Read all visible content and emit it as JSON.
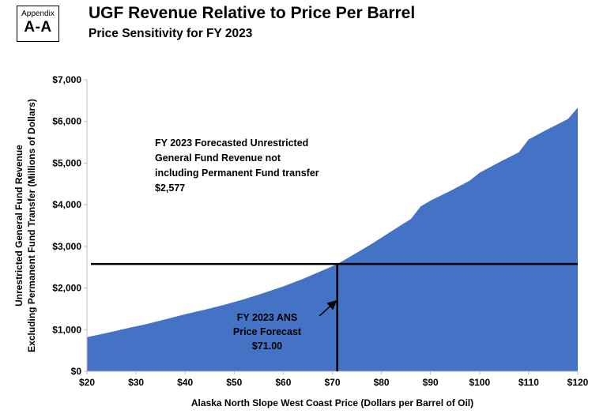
{
  "appendix": {
    "label": "Appendix",
    "id": "A-A"
  },
  "header": {
    "title": "UGF Revenue Relative to Price Per Barrel",
    "subtitle": "Price Sensitivity for FY 2023"
  },
  "colors": {
    "area": "#4472c4",
    "lines": "#000000"
  },
  "chart_data": {
    "type": "area",
    "title": "UGF Revenue Relative to Price Per Barrel",
    "subtitle": "Price Sensitivity for FY 2023",
    "xlabel": "Alaska North Slope West Coast Price (Dollars per Barrel of Oil)",
    "ylabel_lines": [
      "Unrestricted General Fund Revenue",
      "Excluding Permanent Fund Transfer (Millions of Dollars)"
    ],
    "xlim": [
      20,
      120
    ],
    "ylim": [
      0,
      7000
    ],
    "x_ticks": [
      20,
      30,
      40,
      50,
      60,
      70,
      80,
      90,
      100,
      110,
      120
    ],
    "x_tick_labels": [
      "$20",
      "$30",
      "$40",
      "$50",
      "$60",
      "$70",
      "$80",
      "$90",
      "$100",
      "$110",
      "$120"
    ],
    "y_ticks": [
      0,
      1000,
      2000,
      3000,
      4000,
      5000,
      6000,
      7000
    ],
    "y_tick_labels": [
      "$0",
      "$1,000",
      "$2,000",
      "$3,000",
      "$4,000",
      "$5,000",
      "$6,000",
      "$7,000"
    ],
    "grid": false,
    "legend": "none",
    "series": [
      {
        "x": [
          20,
          24,
          28,
          32,
          36,
          40,
          44,
          48,
          52,
          56,
          60,
          64,
          68,
          71,
          74,
          78,
          82,
          86,
          88,
          90,
          94,
          98,
          100,
          104,
          108,
          110,
          114,
          118,
          120
        ],
        "y": [
          820,
          920,
          1030,
          1130,
          1250,
          1370,
          1480,
          1600,
          1730,
          1880,
          2040,
          2220,
          2420,
          2577,
          2780,
          3060,
          3360,
          3660,
          3960,
          4100,
          4330,
          4580,
          4770,
          5020,
          5260,
          5570,
          5820,
          6060,
          6330
        ]
      }
    ],
    "reference": {
      "price": 71.0,
      "revenue": 2577
    },
    "annotations": {
      "revenue_lines": [
        "FY 2023 Forecasted Unrestricted",
        "General Fund Revenue not",
        "including Permanent Fund transfer",
        "$2,577"
      ],
      "price_lines": [
        "FY 2023 ANS",
        "Price Forecast",
        "$71.00"
      ]
    }
  }
}
